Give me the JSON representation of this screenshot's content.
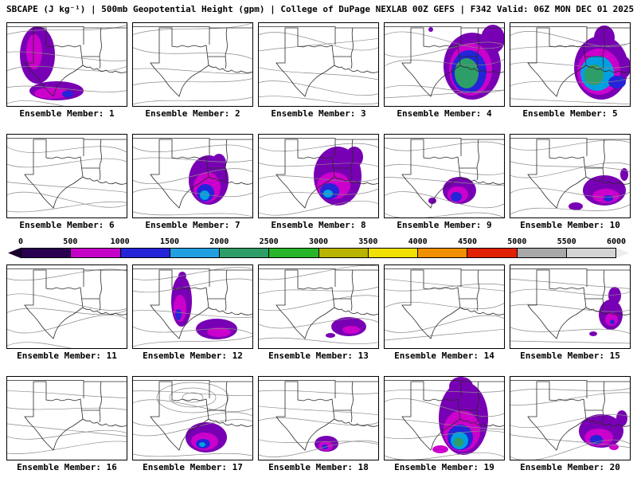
{
  "header": {
    "title": "SBCAPE (J kg⁻¹) | 500mb Geopotential Height (gpm) | College of DuPage NEXLAB 00Z GEFS | F342 Valid: 06Z MON DEC 01 2025"
  },
  "colorbar": {
    "ticks": [
      "0",
      "500",
      "1000",
      "1500",
      "2000",
      "2500",
      "3000",
      "3500",
      "4000",
      "4500",
      "5000",
      "5500",
      "6000"
    ],
    "segment_colors": [
      "#2a0050",
      "#c400c8",
      "#2424d8",
      "#20a0e0",
      "#2e9e68",
      "#28b428",
      "#b8b400",
      "#f0e000",
      "#f09000",
      "#e02000",
      "#a8a8a8",
      "#d4d4d4"
    ],
    "left_cap_color": "#1a0030",
    "right_cap_color": "#ededed"
  },
  "map_palette": {
    "purple": "#7800b4",
    "magenta": "#cc00cc",
    "blue": "#2424d8",
    "cyan": "#00a0e0",
    "green": "#2e9e68"
  },
  "members": [
    {
      "id": 1,
      "label": "Ensemble Member: 1",
      "blobs": [
        [
          38,
          40,
          22,
          36,
          "purple"
        ],
        [
          62,
          85,
          34,
          12,
          "purple"
        ],
        [
          40,
          14,
          7,
          7,
          "purple"
        ],
        [
          34,
          36,
          10,
          22,
          "magenta"
        ],
        [
          56,
          88,
          22,
          7,
          "magenta"
        ],
        [
          76,
          89,
          7,
          4,
          "blue"
        ]
      ]
    },
    {
      "id": 2,
      "label": "Ensemble Member: 2",
      "blobs": []
    },
    {
      "id": 3,
      "label": "Ensemble Member: 3",
      "blobs": []
    },
    {
      "id": 4,
      "label": "Ensemble Member: 4",
      "blobs": [
        [
          110,
          54,
          36,
          42,
          "purple"
        ],
        [
          136,
          20,
          15,
          18,
          "purple"
        ],
        [
          58,
          8,
          3,
          3,
          "purple"
        ],
        [
          108,
          58,
          27,
          33,
          "magenta"
        ],
        [
          106,
          61,
          22,
          27,
          "blue"
        ],
        [
          103,
          63,
          15,
          19,
          "green"
        ]
      ]
    },
    {
      "id": 5,
      "label": "Ensemble Member: 5",
      "blobs": [
        [
          114,
          56,
          34,
          40,
          "purple"
        ],
        [
          118,
          18,
          13,
          15,
          "purple"
        ],
        [
          146,
          55,
          5,
          12,
          "purple"
        ],
        [
          111,
          61,
          27,
          29,
          "magenta"
        ],
        [
          109,
          63,
          21,
          22,
          "cyan"
        ],
        [
          134,
          74,
          11,
          8,
          "blue"
        ],
        [
          105,
          65,
          12,
          13,
          "green"
        ]
      ]
    },
    {
      "id": 6,
      "label": "Ensemble Member: 6",
      "blobs": []
    },
    {
      "id": 7,
      "label": "Ensemble Member: 7",
      "blobs": [
        [
          95,
          57,
          25,
          31,
          "purple"
        ],
        [
          108,
          36,
          9,
          12,
          "purple"
        ],
        [
          93,
          66,
          17,
          19,
          "magenta"
        ],
        [
          91,
          73,
          11,
          11,
          "blue"
        ],
        [
          90,
          76,
          6,
          6,
          "cyan"
        ]
      ]
    },
    {
      "id": 8,
      "label": "Ensemble Member: 8",
      "blobs": [
        [
          99,
          52,
          30,
          37,
          "purple"
        ],
        [
          120,
          28,
          11,
          13,
          "purple"
        ],
        [
          94,
          64,
          21,
          17,
          "magenta"
        ],
        [
          89,
          71,
          12,
          10,
          "blue"
        ],
        [
          87,
          74,
          6,
          5,
          "cyan"
        ]
      ]
    },
    {
      "id": 9,
      "label": "Ensemble Member: 9",
      "blobs": [
        [
          94,
          70,
          21,
          17,
          "purple"
        ],
        [
          60,
          83,
          5,
          4,
          "purple"
        ],
        [
          92,
          75,
          13,
          10,
          "magenta"
        ],
        [
          90,
          78,
          7,
          6,
          "blue"
        ]
      ]
    },
    {
      "id": 10,
      "label": "Ensemble Member: 10",
      "blobs": [
        [
          118,
          70,
          27,
          19,
          "purple"
        ],
        [
          82,
          90,
          9,
          5,
          "purple"
        ],
        [
          143,
          50,
          5,
          8,
          "purple"
        ],
        [
          120,
          77,
          17,
          9,
          "magenta"
        ],
        [
          123,
          80,
          6,
          4,
          "blue"
        ]
      ]
    },
    {
      "id": 11,
      "label": "Ensemble Member: 11",
      "blobs": []
    },
    {
      "id": 12,
      "label": "Ensemble Member: 12",
      "blobs": [
        [
          61,
          45,
          13,
          32,
          "purple"
        ],
        [
          105,
          80,
          26,
          13,
          "purple"
        ],
        [
          62,
          13,
          5,
          5,
          "purple"
        ],
        [
          59,
          54,
          8,
          17,
          "magenta"
        ],
        [
          108,
          84,
          15,
          6,
          "magenta"
        ],
        [
          57,
          62,
          4,
          7,
          "blue"
        ]
      ]
    },
    {
      "id": 13,
      "label": "Ensemble Member: 13",
      "blobs": [
        [
          113,
          77,
          22,
          12,
          "purple"
        ],
        [
          90,
          88,
          6,
          3,
          "purple"
        ],
        [
          116,
          81,
          11,
          5,
          "magenta"
        ]
      ]
    },
    {
      "id": 14,
      "label": "Ensemble Member: 14",
      "blobs": []
    },
    {
      "id": 15,
      "label": "Ensemble Member: 15",
      "blobs": [
        [
          126,
          62,
          15,
          19,
          "purple"
        ],
        [
          131,
          38,
          8,
          11,
          "purple"
        ],
        [
          104,
          86,
          5,
          3,
          "purple"
        ],
        [
          127,
          68,
          8,
          8,
          "magenta"
        ],
        [
          128,
          71,
          3,
          3,
          "blue"
        ]
      ]
    },
    {
      "id": 16,
      "label": "Ensemble Member: 16",
      "blobs": []
    },
    {
      "id": 17,
      "label": "Ensemble Member: 17",
      "blobs": [
        [
          92,
          76,
          26,
          19,
          "purple"
        ],
        [
          90,
          81,
          17,
          11,
          "magenta"
        ],
        [
          88,
          84,
          9,
          6,
          "blue"
        ],
        [
          87,
          85,
          4,
          3,
          "cyan"
        ]
      ]
    },
    {
      "id": 18,
      "label": "Ensemble Member: 18",
      "blobs": [
        [
          85,
          84,
          15,
          10,
          "purple"
        ],
        [
          84,
          87,
          9,
          6,
          "magenta"
        ],
        [
          83,
          88,
          4,
          3,
          "blue"
        ]
      ]
    },
    {
      "id": 19,
      "label": "Ensemble Member: 19",
      "blobs": [
        [
          99,
          52,
          31,
          46,
          "purple"
        ],
        [
          96,
          12,
          15,
          12,
          "purple"
        ],
        [
          97,
          68,
          23,
          26,
          "magenta"
        ],
        [
          95,
          76,
          16,
          16,
          "blue"
        ],
        [
          94,
          80,
          11,
          11,
          "cyan"
        ],
        [
          93,
          82,
          6,
          6,
          "green"
        ],
        [
          70,
          91,
          10,
          5,
          "magenta"
        ]
      ]
    },
    {
      "id": 20,
      "label": "Ensemble Member: 20",
      "blobs": [
        [
          114,
          68,
          28,
          21,
          "purple"
        ],
        [
          140,
          52,
          7,
          10,
          "purple"
        ],
        [
          111,
          76,
          18,
          11,
          "magenta"
        ],
        [
          130,
          88,
          6,
          4,
          "magenta"
        ],
        [
          108,
          79,
          8,
          6,
          "blue"
        ]
      ]
    }
  ]
}
